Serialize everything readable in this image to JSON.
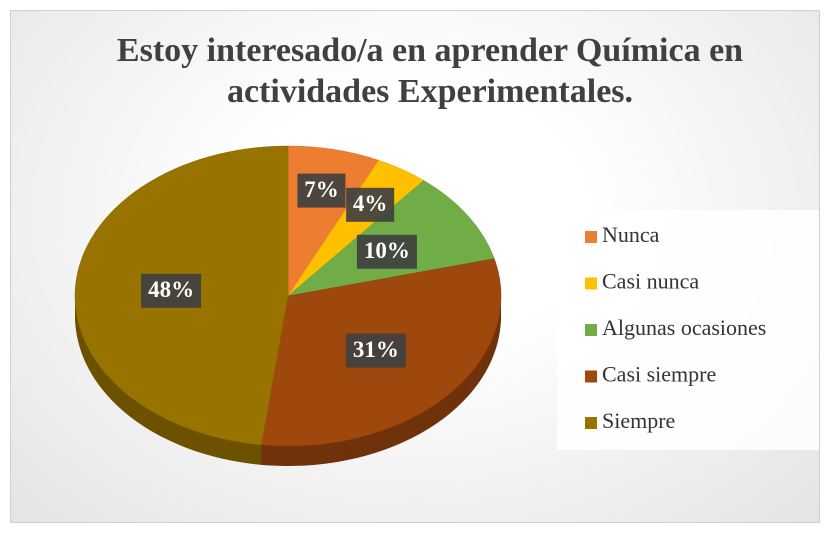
{
  "chart_data": {
    "type": "pie",
    "title": "Estoy interesado/a en aprender Química en actividades Experimentales.",
    "categories": [
      "Nunca",
      "Casi nunca",
      "Algunas ocasiones",
      "Casi siempre",
      "Siempre"
    ],
    "values": [
      7,
      4,
      10,
      31,
      48
    ],
    "value_labels": [
      "7%",
      "4%",
      "10%",
      "31%",
      "48%"
    ],
    "colors": [
      "#ED7D31",
      "#FFC000",
      "#70AD47",
      "#9E480E",
      "#997300"
    ],
    "legend": "right"
  }
}
